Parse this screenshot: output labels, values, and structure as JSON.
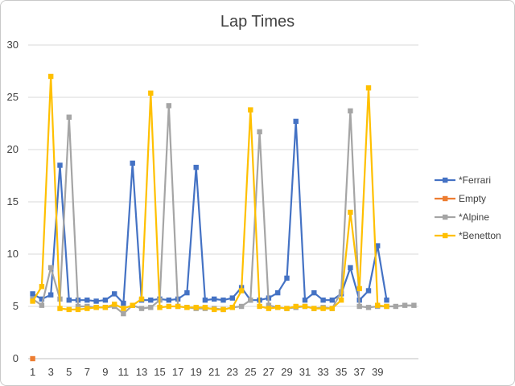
{
  "chart_data": {
    "type": "line",
    "title": "Lap Times",
    "xlabel": "",
    "ylabel": "",
    "ylim": [
      0,
      30
    ],
    "yticks": [
      0,
      5,
      10,
      15,
      20,
      25,
      30
    ],
    "x": [
      1,
      2,
      3,
      4,
      5,
      6,
      7,
      8,
      9,
      10,
      11,
      12,
      13,
      14,
      15,
      16,
      17,
      18,
      19,
      20,
      21,
      22,
      23,
      24,
      25,
      26,
      27,
      28,
      29,
      30,
      31,
      32,
      33,
      34,
      35,
      36,
      37,
      38,
      39,
      40,
      41,
      42,
      43
    ],
    "xtick_labels": [
      "1",
      "3",
      "5",
      "7",
      "9",
      "11",
      "13",
      "15",
      "17",
      "19",
      "21",
      "23",
      "25",
      "27",
      "29",
      "31",
      "33",
      "35",
      "37",
      "39"
    ],
    "grid": true,
    "legend_position": "right",
    "series": [
      {
        "name": "*Ferrari",
        "color": "#4472C4",
        "values": [
          6.2,
          5.7,
          6.1,
          18.5,
          5.6,
          5.6,
          5.6,
          5.5,
          5.6,
          6.2,
          5.3,
          18.7,
          5.6,
          5.6,
          5.7,
          5.6,
          5.7,
          6.3,
          18.3,
          5.6,
          5.7,
          5.6,
          5.8,
          6.8,
          5.6,
          5.6,
          5.8,
          6.3,
          7.7,
          22.7,
          5.6,
          6.3,
          5.6,
          5.6,
          6.2,
          8.7,
          5.6,
          6.5,
          10.8,
          5.6,
          null,
          null,
          null
        ]
      },
      {
        "name": "Empty",
        "color": "#ED7D31",
        "values": [
          0,
          null,
          null,
          null,
          null,
          null,
          null,
          null,
          null,
          null,
          null,
          null,
          null,
          null,
          null,
          null,
          null,
          null,
          null,
          null,
          null,
          null,
          null,
          null,
          null,
          null,
          null,
          null,
          null,
          null,
          null,
          null,
          null,
          null,
          null,
          null,
          null,
          null,
          null,
          null,
          null,
          null,
          null
        ]
      },
      {
        "name": "*Alpine",
        "color": "#A5A5A5",
        "values": [
          5.7,
          5.1,
          8.7,
          5.7,
          23.1,
          5.0,
          5.0,
          4.9,
          4.9,
          5.0,
          4.3,
          5.1,
          4.8,
          4.9,
          5.6,
          24.2,
          5.0,
          4.9,
          4.8,
          4.8,
          4.8,
          4.7,
          4.9,
          5.0,
          5.6,
          21.7,
          5.1,
          4.9,
          4.8,
          4.9,
          5.0,
          4.8,
          4.9,
          4.8,
          6.4,
          23.7,
          5.0,
          4.9,
          5.0,
          5.0,
          5.0,
          5.1,
          5.1
        ]
      },
      {
        "name": "*Benetton",
        "color": "#FFC000",
        "values": [
          5.5,
          6.9,
          27.0,
          4.8,
          4.7,
          4.7,
          4.8,
          4.9,
          4.9,
          5.2,
          4.8,
          5.1,
          5.7,
          25.4,
          4.9,
          5.0,
          5.0,
          4.9,
          4.9,
          4.9,
          4.7,
          4.7,
          4.9,
          6.5,
          23.8,
          5.0,
          4.8,
          4.9,
          4.8,
          5.0,
          5.0,
          4.8,
          4.8,
          4.8,
          5.6,
          14.0,
          6.7,
          25.9,
          5.1,
          5.0,
          null,
          null,
          null
        ]
      }
    ]
  }
}
